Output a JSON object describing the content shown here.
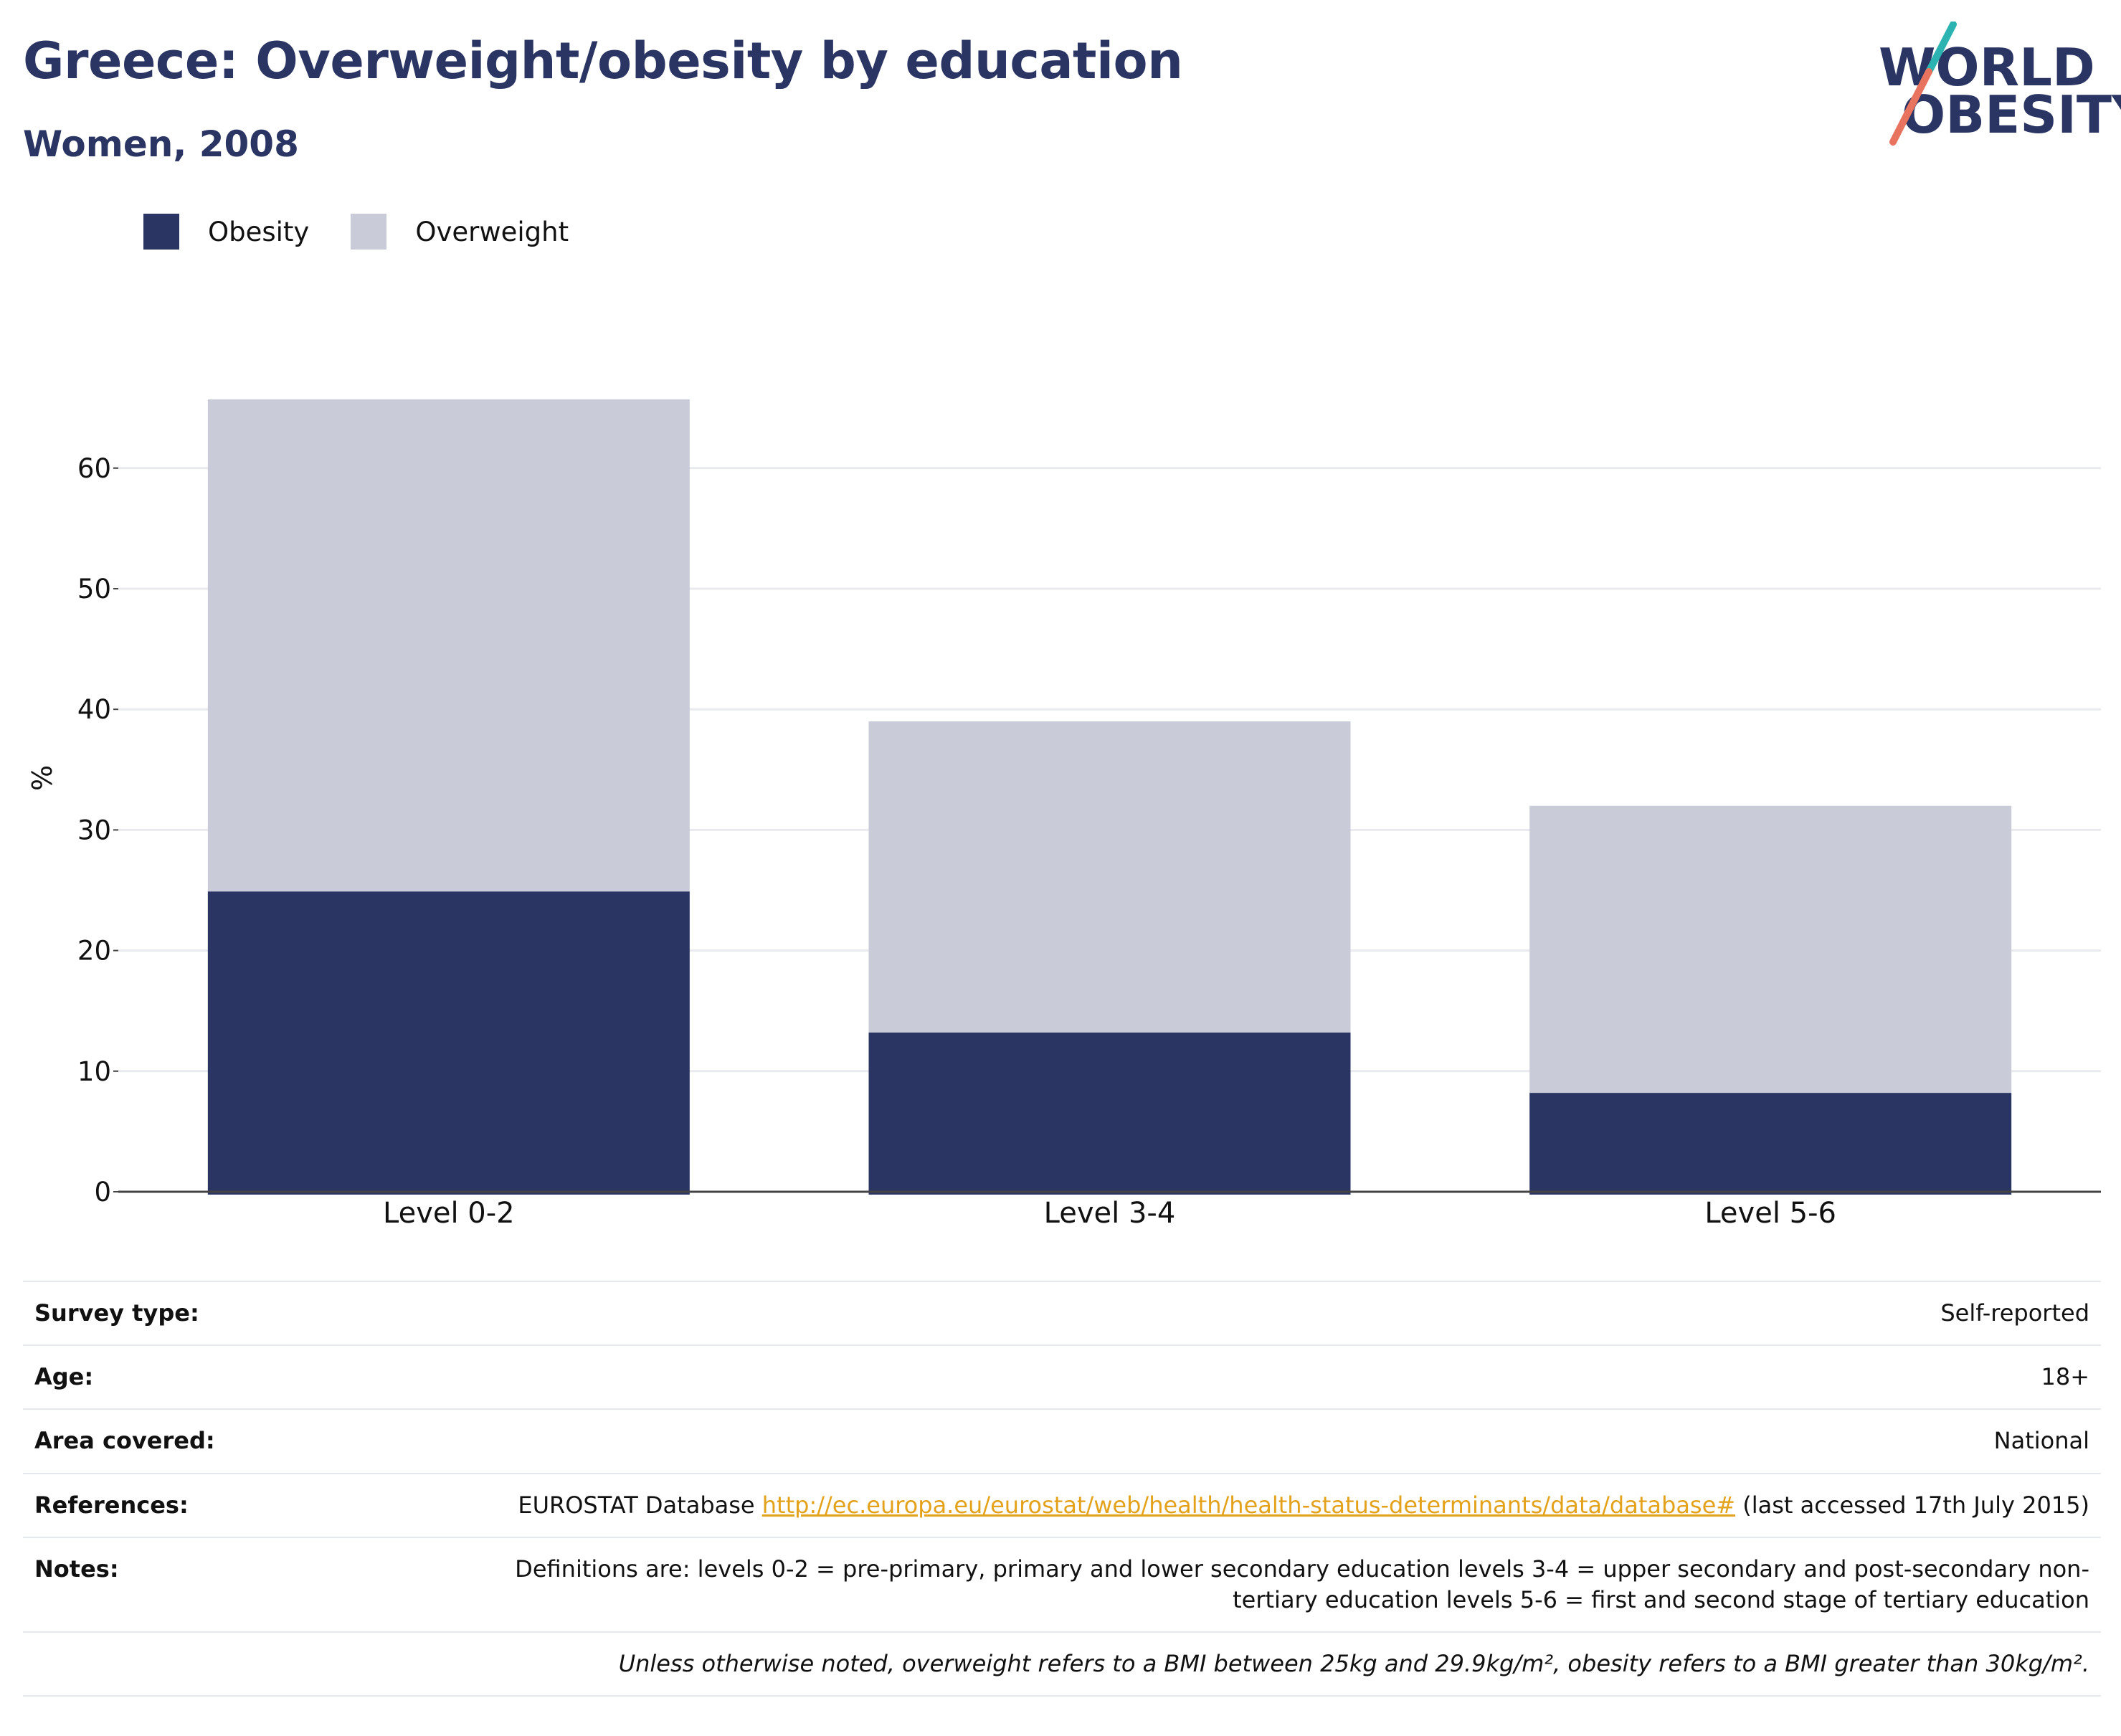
{
  "title": "Greece: Overweight/obesity by education",
  "subtitle": "Women, 2008",
  "logo": {
    "line1": "WORLD",
    "line2": "OBESITY"
  },
  "colors": {
    "obesity": "#2a3563",
    "overweight": "#c9ccd8",
    "title": "#2a3563",
    "link": "#e3a21a",
    "logo_teal": "#2bb3b1",
    "logo_coral": "#e8735f"
  },
  "legend": [
    {
      "name": "Obesity",
      "color": "#2a3563"
    },
    {
      "name": "Overweight",
      "color": "#c9ccd8"
    }
  ],
  "chart_data": {
    "type": "bar",
    "stacked": true,
    "categories": [
      "Level 0-2",
      "Level 3-4",
      "Level 5-6"
    ],
    "series": [
      {
        "name": "Obesity",
        "values": [
          24.9,
          13.2,
          8.2
        ]
      },
      {
        "name": "Overweight",
        "values": [
          40.8,
          25.8,
          23.8
        ]
      }
    ],
    "totals": [
      65.7,
      39.0,
      32.0
    ],
    "ylabel": "%",
    "yticks": [
      0,
      10,
      20,
      30,
      40,
      50,
      60
    ],
    "ylim": [
      0,
      68
    ],
    "grid": true,
    "legend_position": "top-left"
  },
  "info": [
    {
      "key": "Survey type:",
      "value": "Self-reported"
    },
    {
      "key": "Age:",
      "value": "18+"
    },
    {
      "key": "Area covered:",
      "value": "National"
    },
    {
      "key": "References:",
      "value_prefix": "EUROSTAT Database ",
      "link": "http://ec.europa.eu/eurostat/web/health/health-status-determinants/data/database#",
      "value_suffix": " (last accessed 17th July 2015)"
    },
    {
      "key": "Notes:",
      "value": "Definitions are: levels 0-2 = pre-primary, primary and lower secondary education levels 3-4 = upper secondary and post-secondary non-tertiary education levels 5-6 = first and second stage of tertiary education"
    }
  ],
  "footnote": "Unless otherwise noted, overweight refers to a BMI between 25kg and 29.9kg/m², obesity refers to a BMI greater than 30kg/m²."
}
